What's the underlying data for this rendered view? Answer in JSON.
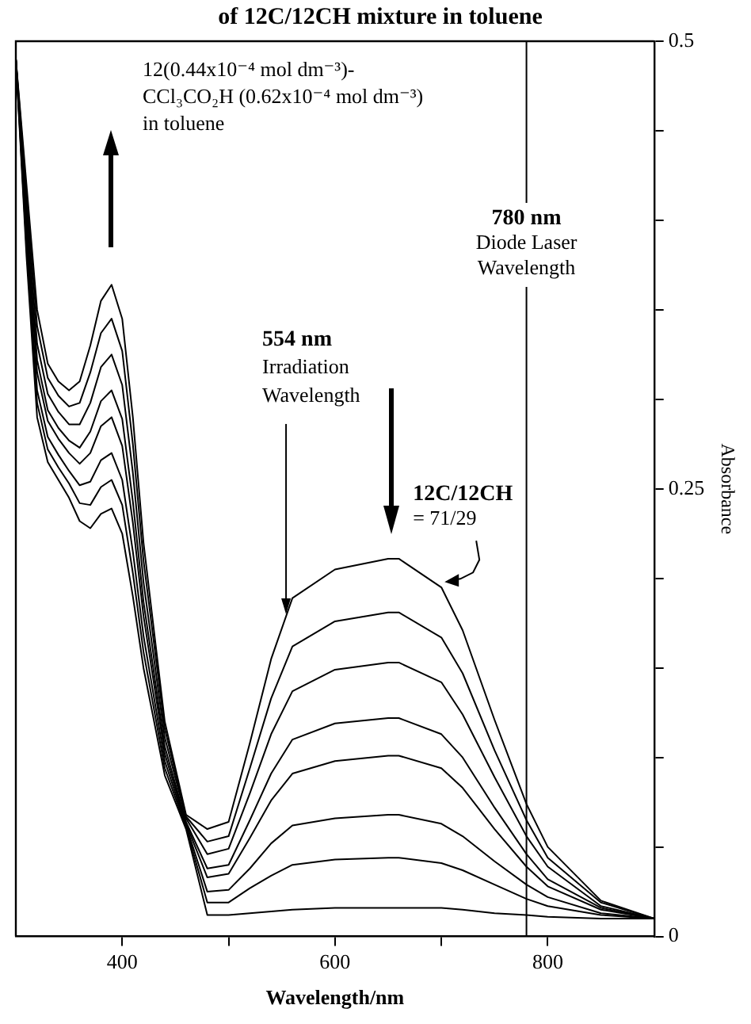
{
  "chart_data": {
    "type": "line",
    "title": "of 12C/12CH mixture in toluene",
    "xlabel": "Wavelength/nm",
    "ylabel": "Absorbance",
    "x": [
      300,
      310,
      320,
      330,
      340,
      350,
      360,
      370,
      380,
      390,
      400,
      410,
      420,
      440,
      460,
      480,
      500,
      520,
      540,
      560,
      600,
      650,
      660,
      700,
      720,
      750,
      780,
      800,
      850,
      900
    ],
    "series": [
      {
        "color": "#000000",
        "values": [
          0.49,
          0.42,
          0.35,
          0.32,
          0.31,
          0.305,
          0.31,
          0.33,
          0.355,
          0.364,
          0.345,
          0.29,
          0.22,
          0.12,
          0.068,
          0.06,
          0.064,
          0.108,
          0.155,
          0.189,
          0.205,
          0.211,
          0.211,
          0.195,
          0.171,
          0.121,
          0.074,
          0.05,
          0.02,
          0.01
        ]
      },
      {
        "color": "#000000",
        "values": [
          0.49,
          0.414,
          0.341,
          0.312,
          0.302,
          0.296,
          0.298,
          0.315,
          0.337,
          0.345,
          0.327,
          0.275,
          0.21,
          0.116,
          0.067,
          0.053,
          0.056,
          0.094,
          0.133,
          0.162,
          0.176,
          0.181,
          0.181,
          0.167,
          0.147,
          0.104,
          0.065,
          0.044,
          0.019,
          0.01
        ]
      },
      {
        "color": "#000000",
        "values": [
          0.49,
          0.408,
          0.331,
          0.303,
          0.293,
          0.286,
          0.286,
          0.298,
          0.318,
          0.325,
          0.308,
          0.259,
          0.198,
          0.111,
          0.066,
          0.046,
          0.049,
          0.08,
          0.113,
          0.137,
          0.149,
          0.153,
          0.153,
          0.142,
          0.124,
          0.089,
          0.056,
          0.039,
          0.017,
          0.01
        ]
      },
      {
        "color": "#000000",
        "values": [
          0.49,
          0.401,
          0.322,
          0.294,
          0.284,
          0.277,
          0.273,
          0.282,
          0.299,
          0.305,
          0.289,
          0.243,
          0.187,
          0.106,
          0.064,
          0.038,
          0.04,
          0.065,
          0.091,
          0.11,
          0.119,
          0.122,
          0.122,
          0.113,
          0.1,
          0.072,
          0.046,
          0.032,
          0.016,
          0.01
        ]
      },
      {
        "color": "#000000",
        "values": [
          0.49,
          0.396,
          0.315,
          0.288,
          0.278,
          0.27,
          0.264,
          0.27,
          0.285,
          0.29,
          0.274,
          0.231,
          0.179,
          0.102,
          0.063,
          0.033,
          0.035,
          0.055,
          0.076,
          0.091,
          0.098,
          0.101,
          0.101,
          0.094,
          0.083,
          0.06,
          0.039,
          0.028,
          0.015,
          0.01
        ]
      },
      {
        "color": "#000000",
        "values": [
          0.49,
          0.39,
          0.305,
          0.279,
          0.269,
          0.26,
          0.252,
          0.254,
          0.266,
          0.27,
          0.255,
          0.215,
          0.168,
          0.098,
          0.062,
          0.025,
          0.026,
          0.038,
          0.052,
          0.062,
          0.066,
          0.068,
          0.068,
          0.063,
          0.056,
          0.042,
          0.029,
          0.022,
          0.013,
          0.01
        ]
      },
      {
        "color": "#000000",
        "values": [
          0.49,
          0.385,
          0.298,
          0.272,
          0.262,
          0.253,
          0.242,
          0.241,
          0.251,
          0.255,
          0.241,
          0.203,
          0.159,
          0.094,
          0.061,
          0.019,
          0.019,
          0.027,
          0.034,
          0.04,
          0.043,
          0.044,
          0.044,
          0.041,
          0.037,
          0.029,
          0.021,
          0.017,
          0.012,
          0.01
        ]
      },
      {
        "color": "#000000",
        "values": [
          0.49,
          0.38,
          0.29,
          0.265,
          0.255,
          0.245,
          0.232,
          0.228,
          0.236,
          0.239,
          0.225,
          0.19,
          0.15,
          0.09,
          0.06,
          0.012,
          0.012,
          0.013,
          0.014,
          0.015,
          0.016,
          0.016,
          0.016,
          0.016,
          0.015,
          0.013,
          0.012,
          0.011,
          0.01,
          0.01
        ]
      }
    ],
    "xlim": [
      300,
      900
    ],
    "xticks": [
      400,
      {
        "value": 500,
        "label": null
      },
      600,
      {
        "value": 700,
        "label": null
      },
      800
    ],
    "ylim": [
      0,
      0.5
    ],
    "yticks": [
      0,
      {
        "value": 0.05,
        "label": null
      },
      {
        "value": 0.1,
        "label": null
      },
      {
        "value": 0.15,
        "label": null
      },
      {
        "value": 0.2,
        "label": null
      },
      0.25,
      {
        "value": 0.3,
        "label": null
      },
      {
        "value": 0.35,
        "label": null
      },
      {
        "value": 0.4,
        "label": null
      },
      {
        "value": 0.45,
        "label": null
      },
      0.5
    ],
    "ref_lines": [
      {
        "axis": "x",
        "value": 780,
        "label": "780 nm\nDiode Laser\nWavelength"
      }
    ],
    "annotations": [
      "12(0.44x10⁻⁴ mol dm⁻³)-\nCCl₃CO₂H (0.62x10⁻⁴ mol dm⁻³)\nin toluene",
      {
        "text": "554 nm\nIrradiation\nWavelength",
        "x": 554,
        "y": 0.18
      },
      {
        "text": "12C/12CH\n= 71/29",
        "x": 703,
        "y": 0.198
      }
    ],
    "grid": false,
    "legend": false,
    "marker": "none",
    "line_style": "solid"
  }
}
